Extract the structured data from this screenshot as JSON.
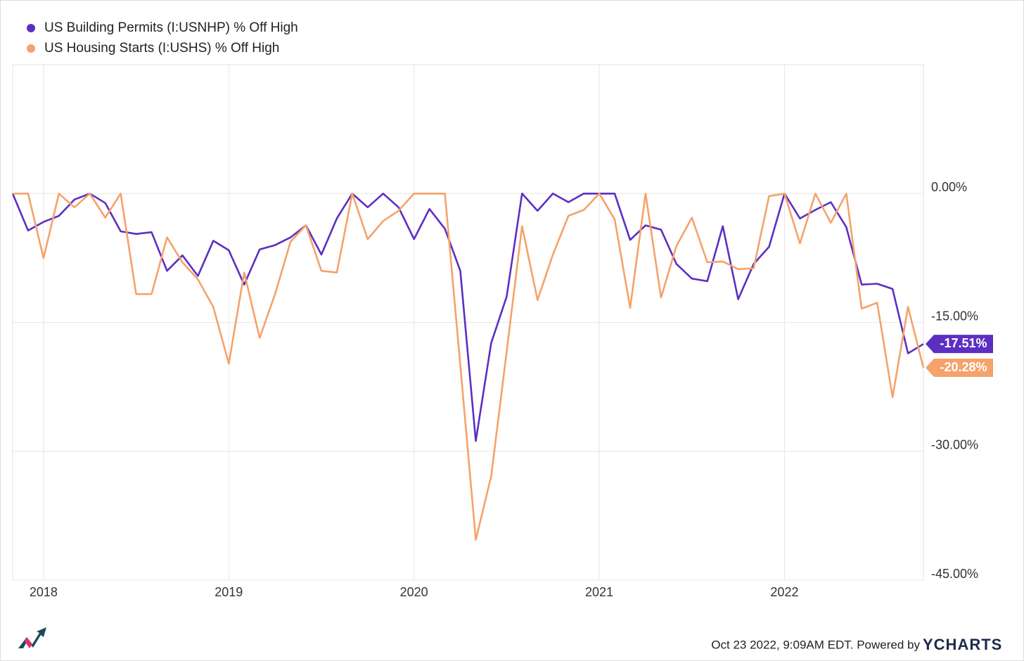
{
  "chart_data": {
    "type": "line",
    "x": [
      "2017-11",
      "2017-12",
      "2018-01",
      "2018-02",
      "2018-03",
      "2018-04",
      "2018-05",
      "2018-06",
      "2018-07",
      "2018-08",
      "2018-09",
      "2018-10",
      "2018-11",
      "2018-12",
      "2019-01",
      "2019-02",
      "2019-03",
      "2019-04",
      "2019-05",
      "2019-06",
      "2019-07",
      "2019-08",
      "2019-09",
      "2019-10",
      "2019-11",
      "2019-12",
      "2020-01",
      "2020-02",
      "2020-03",
      "2020-04",
      "2020-05",
      "2020-06",
      "2020-07",
      "2020-08",
      "2020-09",
      "2020-10",
      "2020-11",
      "2020-12",
      "2021-01",
      "2021-02",
      "2021-03",
      "2021-04",
      "2021-05",
      "2021-06",
      "2021-07",
      "2021-08",
      "2021-09",
      "2021-10",
      "2021-11",
      "2021-12",
      "2022-01",
      "2022-02",
      "2022-03",
      "2022-04",
      "2022-05",
      "2022-06",
      "2022-07",
      "2022-08",
      "2022-09",
      "2022-10"
    ],
    "series": [
      {
        "name": "US Building Permits (I:USNHP) % Off High",
        "color": "#5c2fc2",
        "last_label": "-17.51%",
        "values": [
          0,
          -4.3,
          -3.3,
          -2.6,
          -0.7,
          0,
          -1.1,
          -4.4,
          -4.7,
          -4.5,
          -9.0,
          -7.2,
          -9.6,
          -5.5,
          -6.6,
          -10.6,
          -6.5,
          -6.0,
          -5.1,
          -3.7,
          -7.1,
          -2.9,
          0,
          -1.6,
          0,
          -1.6,
          -5.3,
          -1.8,
          -4.1,
          -9.0,
          -28.8,
          -17.4,
          -12.0,
          0,
          -2.0,
          0,
          -1.0,
          0,
          0,
          0,
          -5.4,
          -3.7,
          -4.2,
          -8.2,
          -9.9,
          -10.2,
          -3.8,
          -12.3,
          -8.2,
          -6.2,
          0,
          -2.9,
          -1.9,
          -1.0,
          -3.9,
          -10.6,
          -10.5,
          -11.1,
          -18.6,
          -17.51
        ]
      },
      {
        "name": "US Housing Starts (I:USHS) % Off High",
        "color": "#f5a26b",
        "last_label": "-20.28%",
        "values": [
          0,
          0,
          -7.5,
          0,
          -1.6,
          0,
          -2.8,
          0,
          -11.7,
          -11.7,
          -5.1,
          -8.0,
          -10.0,
          -13.2,
          -19.8,
          -9.2,
          -16.8,
          -11.7,
          -5.6,
          -3.7,
          -9.0,
          -9.2,
          0,
          -5.3,
          -3.2,
          -2.0,
          0,
          0,
          0,
          -20.0,
          -40.3,
          -32.9,
          -18.4,
          -3.8,
          -12.4,
          -7.1,
          -2.6,
          -1.9,
          0,
          -3.0,
          -13.3,
          0,
          -12.1,
          -6.1,
          -2.8,
          -8.0,
          -7.9,
          -8.8,
          -8.7,
          -0.3,
          0,
          -5.8,
          0,
          -3.4,
          0,
          -13.4,
          -12.7,
          -23.7,
          -13.2,
          -20.28
        ]
      }
    ],
    "xlim": [
      "2017-11",
      "2022-10"
    ],
    "xticks": [
      "2018",
      "2019",
      "2020",
      "2021",
      "2022"
    ],
    "ylim": [
      -45,
      15
    ],
    "yticks": [
      {
        "value": 0,
        "label": "0.00%"
      },
      {
        "value": -15,
        "label": "-15.00%"
      },
      {
        "value": -30,
        "label": "-30.00%"
      },
      {
        "value": -45,
        "label": "-45.00%"
      }
    ],
    "grid": true,
    "legend": "top-left",
    "footer": "Oct 23 2022, 9:09AM EDT. Powered by",
    "brand": "YCHARTS"
  }
}
